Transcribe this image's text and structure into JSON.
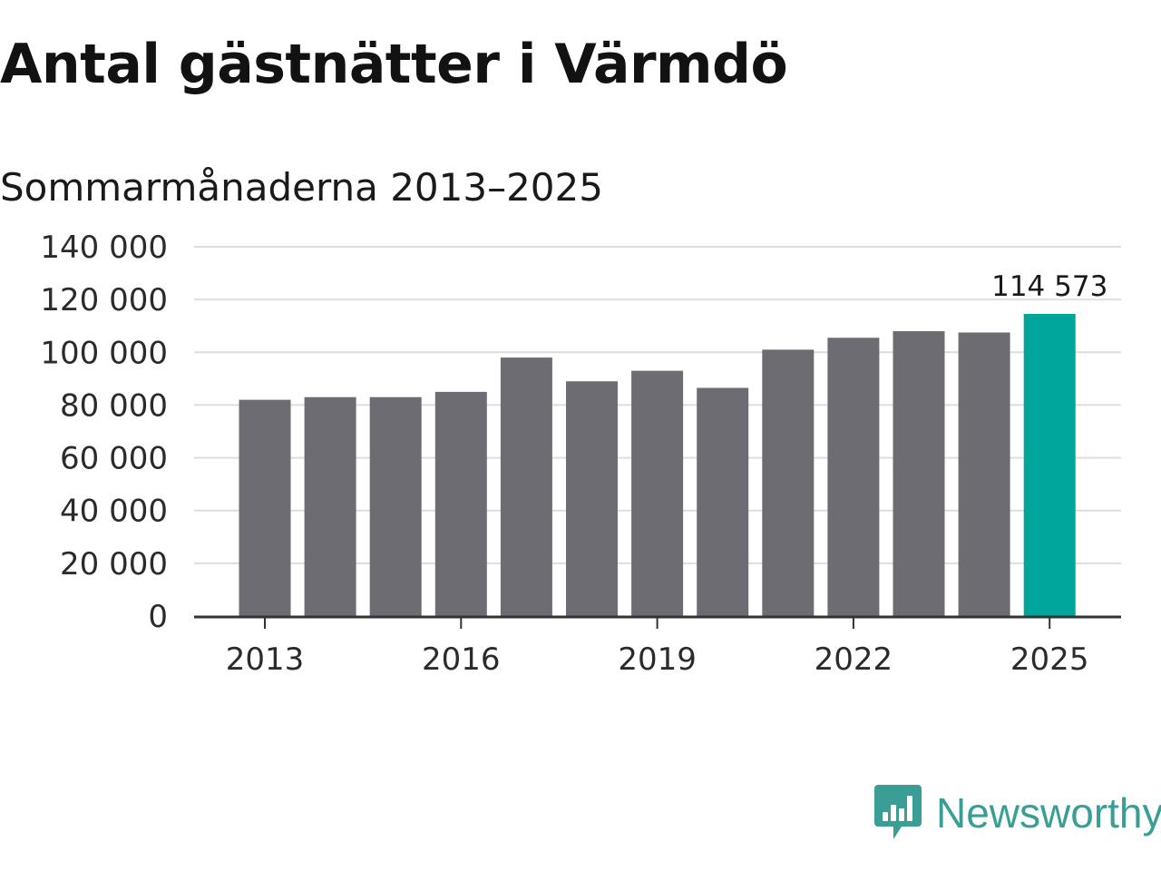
{
  "header": {
    "title": "Antal gästnätter i Värmdö",
    "subtitle": "Sommarmånaderna 2013–2025"
  },
  "branding": {
    "name": "Newsworthy",
    "logo_icon": "newsworthy-bar-chart-speech-bubble-icon",
    "color": "#3a9e97"
  },
  "colors": {
    "bar_default": "#6d6c72",
    "bar_highlight": "#00a69a",
    "grid": "#dddddd",
    "axis": "#333333"
  },
  "chart_data": {
    "type": "bar",
    "title": "Antal gästnätter i Värmdö",
    "subtitle": "Sommarmånaderna 2013–2025",
    "categories": [
      "2013",
      "2014",
      "2015",
      "2016",
      "2017",
      "2018",
      "2019",
      "2020",
      "2021",
      "2022",
      "2023",
      "2024",
      "2025"
    ],
    "values": [
      82000,
      83000,
      83000,
      85000,
      98000,
      89000,
      93000,
      86500,
      101000,
      105500,
      108000,
      107500,
      114573
    ],
    "highlight": "2025",
    "data_labels": [
      {
        "category": "2025",
        "text": "114 573"
      }
    ],
    "x_tick_labels": [
      "2013",
      "2016",
      "2019",
      "2022",
      "2025"
    ],
    "y_tick_values": [
      0,
      20000,
      40000,
      60000,
      80000,
      100000,
      120000,
      140000
    ],
    "y_tick_labels": [
      "0",
      "20 000",
      "40 000",
      "60 000",
      "80 000",
      "100 000",
      "120 000",
      "140 000"
    ],
    "ylim": [
      0,
      140000
    ],
    "xlabel": "",
    "ylabel": "",
    "grid": true,
    "legend": "none"
  }
}
